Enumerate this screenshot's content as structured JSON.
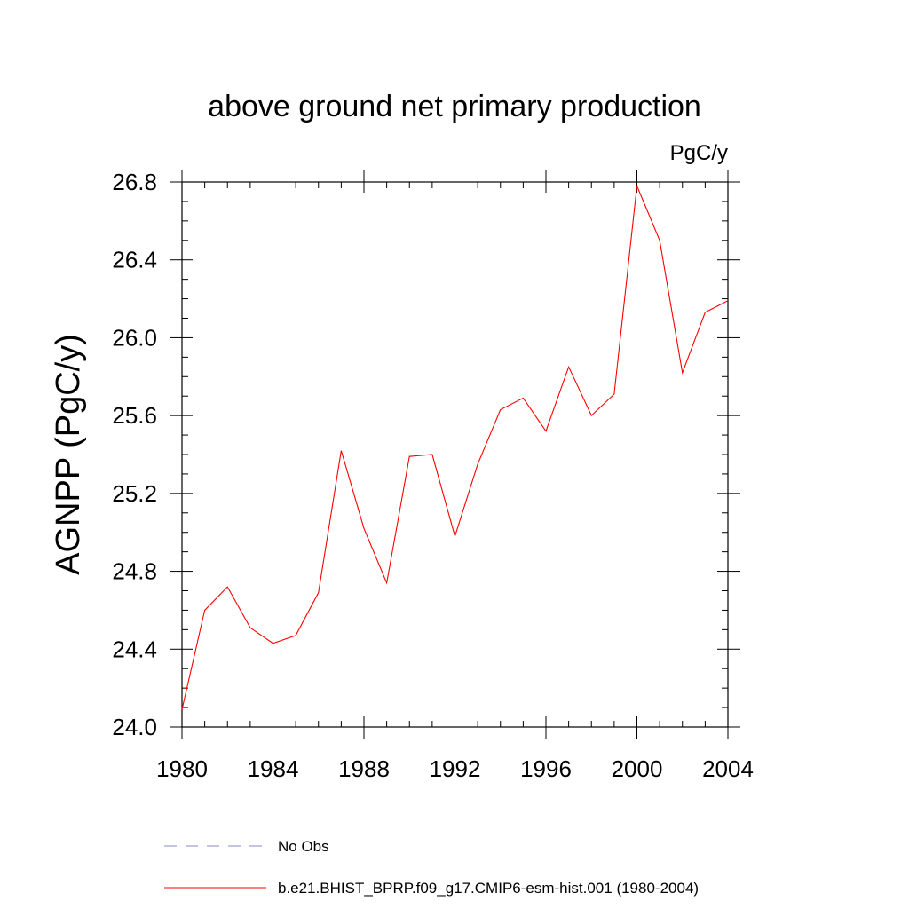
{
  "chart_data": {
    "type": "line",
    "title": "above ground net primary production",
    "units_label": "PgC/y",
    "ylabel": "AGNPP  (PgC/y)",
    "xlabel": "",
    "xlim": [
      1980,
      2004
    ],
    "ylim": [
      24.0,
      26.8
    ],
    "x_ticks": [
      "1980",
      "1984",
      "1988",
      "1992",
      "1996",
      "2000",
      "2004"
    ],
    "y_ticks": [
      "24.0",
      "24.4",
      "24.8",
      "25.2",
      "25.6",
      "26.0",
      "26.4",
      "26.8"
    ],
    "grid": false,
    "legend_position": "bottom",
    "series": [
      {
        "name": "No Obs",
        "color": "#8a8ac8",
        "style": "dashed",
        "x": [],
        "y": []
      },
      {
        "name": "b.e21.BHIST_BPRP.f09_g17.CMIP6-esm-hist.001 (1980-2004)",
        "color": "#ff0000",
        "style": "solid",
        "x": [
          1980,
          1981,
          1982,
          1983,
          1984,
          1985,
          1986,
          1987,
          1988,
          1989,
          1990,
          1991,
          1992,
          1993,
          1994,
          1995,
          1996,
          1997,
          1998,
          1999,
          2000,
          2001,
          2002,
          2003,
          2004
        ],
        "y": [
          24.09,
          24.6,
          24.72,
          24.51,
          24.43,
          24.47,
          24.69,
          25.42,
          25.02,
          24.74,
          25.39,
          25.4,
          24.98,
          25.35,
          25.63,
          25.69,
          25.52,
          25.85,
          25.6,
          25.71,
          26.78,
          26.5,
          25.82,
          26.13,
          26.19
        ]
      }
    ]
  }
}
